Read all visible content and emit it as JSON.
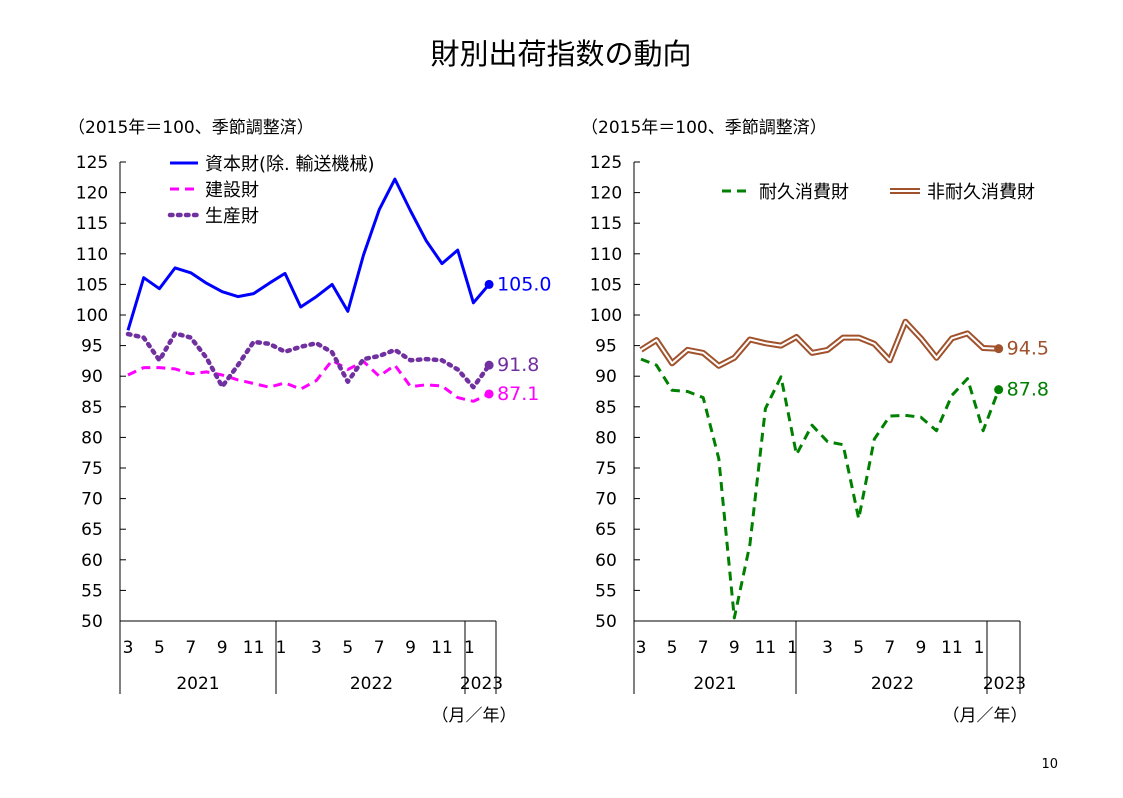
{
  "title": "財別出荷指数の動向",
  "page_number": "10",
  "colors": {
    "capital": "#0000ff",
    "construction": "#ff00ff",
    "production": "#7030a0",
    "durable": "#008000",
    "nondurable": "#a0522d",
    "axis": "#000000"
  },
  "chart_data": [
    {
      "type": "line",
      "subtitle": "（2015年＝100、季節調整済）",
      "x_unit": "（月／年）",
      "x": [
        "2021-03",
        "2021-04",
        "2021-05",
        "2021-06",
        "2021-07",
        "2021-08",
        "2021-09",
        "2021-10",
        "2021-11",
        "2021-12",
        "2022-01",
        "2022-02",
        "2022-03",
        "2022-04",
        "2022-05",
        "2022-06",
        "2022-07",
        "2022-08",
        "2022-09",
        "2022-10",
        "2022-11",
        "2022-12",
        "2023-01",
        "2023-02"
      ],
      "month_ticks": [
        "3",
        "5",
        "7",
        "9",
        "11",
        "1",
        "3",
        "5",
        "7",
        "9",
        "11",
        "1"
      ],
      "year_labels": [
        "2021",
        "2022",
        "2023"
      ],
      "ylim": [
        50,
        125
      ],
      "yticks": [
        50,
        55,
        60,
        65,
        70,
        75,
        80,
        85,
        90,
        95,
        100,
        105,
        110,
        115,
        120,
        125
      ],
      "legend_position": "top-left",
      "series": [
        {
          "name": "資本財(除. 輸送機械)",
          "style": "solid",
          "color_key": "capital",
          "values": [
            97.5,
            106.1,
            104.3,
            107.7,
            106.9,
            105.2,
            103.8,
            103.0,
            103.5,
            105.2,
            106.8,
            101.3,
            103.0,
            105.0,
            100.6,
            109.8,
            117.2,
            122.2,
            117.0,
            112.1,
            108.4,
            110.6,
            102.0,
            105.0
          ],
          "end_label": "105.0"
        },
        {
          "name": "建設財",
          "style": "dashed",
          "color_key": "construction",
          "values": [
            90.2,
            91.4,
            91.4,
            91.2,
            90.4,
            90.7,
            90.2,
            89.4,
            88.8,
            88.2,
            88.9,
            87.9,
            89.3,
            92.6,
            91.1,
            92.4,
            90.0,
            91.8,
            88.3,
            88.6,
            88.4,
            86.5,
            85.9,
            87.1
          ],
          "end_label": "87.1"
        },
        {
          "name": "生産財",
          "style": "dotted",
          "color_key": "production",
          "values": [
            96.9,
            96.3,
            92.6,
            97.0,
            96.3,
            93.0,
            88.3,
            91.8,
            95.6,
            95.3,
            94.0,
            94.8,
            95.4,
            93.9,
            89.1,
            92.8,
            93.3,
            94.3,
            92.6,
            92.8,
            92.6,
            91.1,
            88.2,
            91.8
          ],
          "end_label": "91.8"
        }
      ]
    },
    {
      "type": "line",
      "subtitle": "（2015年＝100、季節調整済）",
      "x_unit": "（月／年）",
      "x": [
        "2021-03",
        "2021-04",
        "2021-05",
        "2021-06",
        "2021-07",
        "2021-08",
        "2021-09",
        "2021-10",
        "2021-11",
        "2021-12",
        "2022-01",
        "2022-02",
        "2022-03",
        "2022-04",
        "2022-05",
        "2022-06",
        "2022-07",
        "2022-08",
        "2022-09",
        "2022-10",
        "2022-11",
        "2022-12",
        "2023-01",
        "2023-02"
      ],
      "month_ticks": [
        "3",
        "5",
        "7",
        "9",
        "11",
        "1",
        "3",
        "5",
        "7",
        "9",
        "11",
        "1"
      ],
      "year_labels": [
        "2021",
        "2022",
        "2023"
      ],
      "ylim": [
        50,
        125
      ],
      "yticks": [
        50,
        55,
        60,
        65,
        70,
        75,
        80,
        85,
        90,
        95,
        100,
        105,
        110,
        115,
        120,
        125
      ],
      "legend_position": "top-right",
      "series": [
        {
          "name": "耐久消費財",
          "style": "dashed",
          "color_key": "durable",
          "values": [
            92.8,
            91.8,
            87.7,
            87.5,
            86.5,
            76.5,
            50.5,
            62.5,
            84.7,
            89.9,
            77.2,
            82.0,
            79.3,
            78.8,
            66.7,
            79.7,
            83.5,
            83.6,
            83.3,
            81.1,
            86.9,
            89.6,
            81.1,
            87.8
          ],
          "end_label": "87.8"
        },
        {
          "name": "非耐久消費財",
          "style": "double",
          "color_key": "nondurable",
          "values": [
            94.3,
            95.9,
            92.1,
            94.3,
            93.8,
            91.7,
            93.0,
            96.0,
            95.4,
            95.0,
            96.4,
            93.8,
            94.3,
            96.3,
            96.3,
            95.3,
            92.6,
            98.9,
            96.2,
            93.0,
            96.2,
            97.0,
            94.6,
            94.5
          ],
          "end_label": "94.5"
        }
      ]
    }
  ]
}
